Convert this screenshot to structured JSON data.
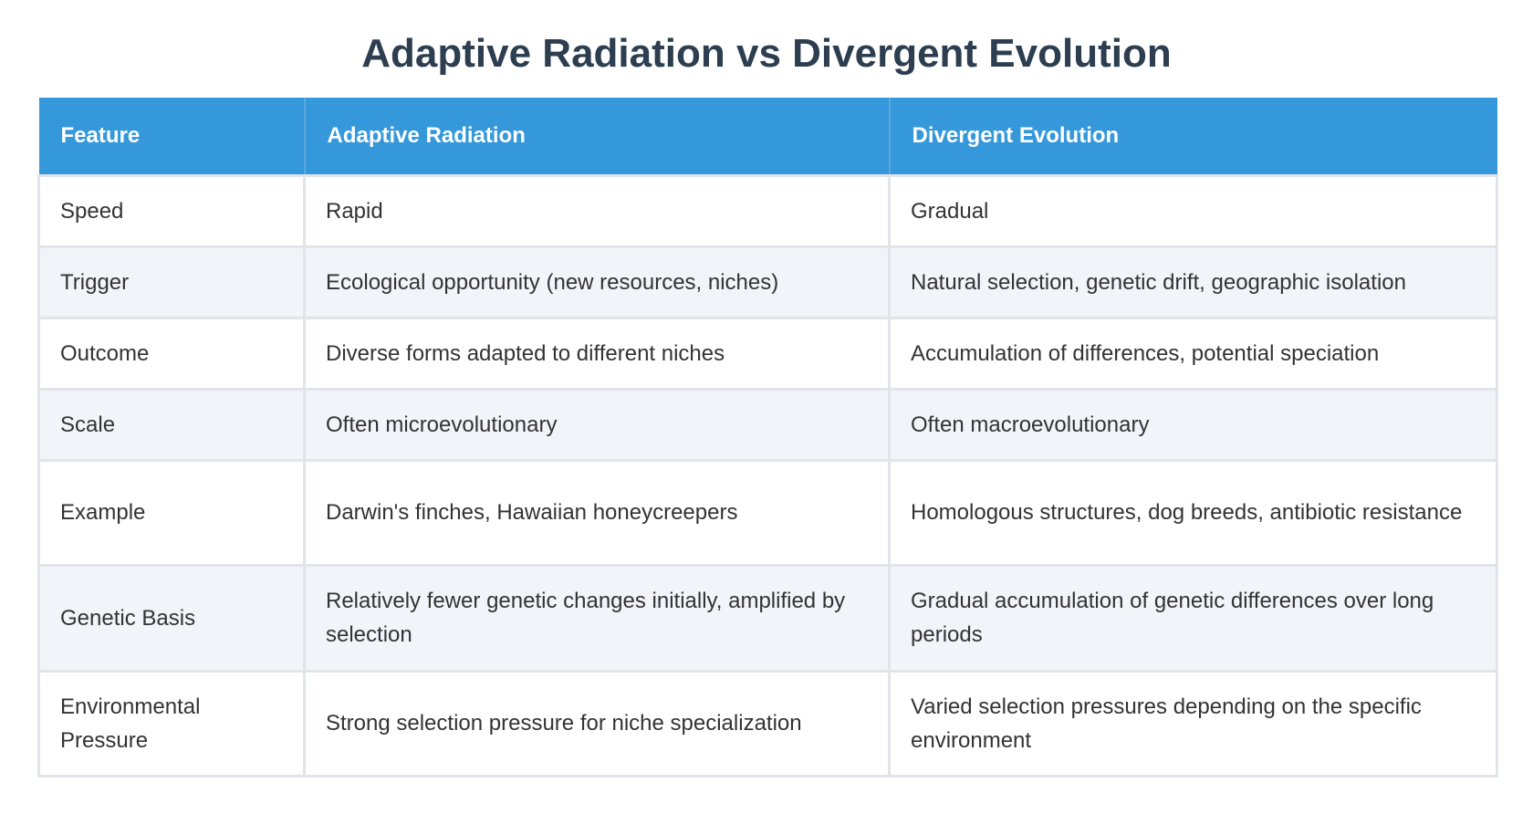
{
  "header": {
    "title": "Adaptive Radiation vs Divergent Evolution"
  },
  "table": {
    "columns": [
      "Feature",
      "Adaptive Radiation",
      "Divergent Evolution"
    ],
    "rows": [
      [
        "Speed",
        "Rapid",
        "Gradual"
      ],
      [
        "Trigger",
        "Ecological opportunity (new resources, niches)",
        "Natural selection, genetic drift, geographic isolation"
      ],
      [
        "Outcome",
        "Diverse forms adapted to different niches",
        "Accumulation of differences, potential speciation"
      ],
      [
        "Scale",
        "Often microevolutionary",
        "Often macroevolutionary"
      ],
      [
        "Example",
        "Darwin's finches, Hawaiian honeycreepers",
        "Homologous structures, dog breeds, antibiotic resistance"
      ],
      [
        "Genetic Basis",
        "Relatively fewer genetic changes initially, amplified by selection",
        "Gradual accumulation of genetic differences over long periods"
      ],
      [
        "Environmental Pressure",
        "Strong selection pressure for niche specialization",
        "Varied selection pressures depending on the specific environment"
      ]
    ]
  }
}
